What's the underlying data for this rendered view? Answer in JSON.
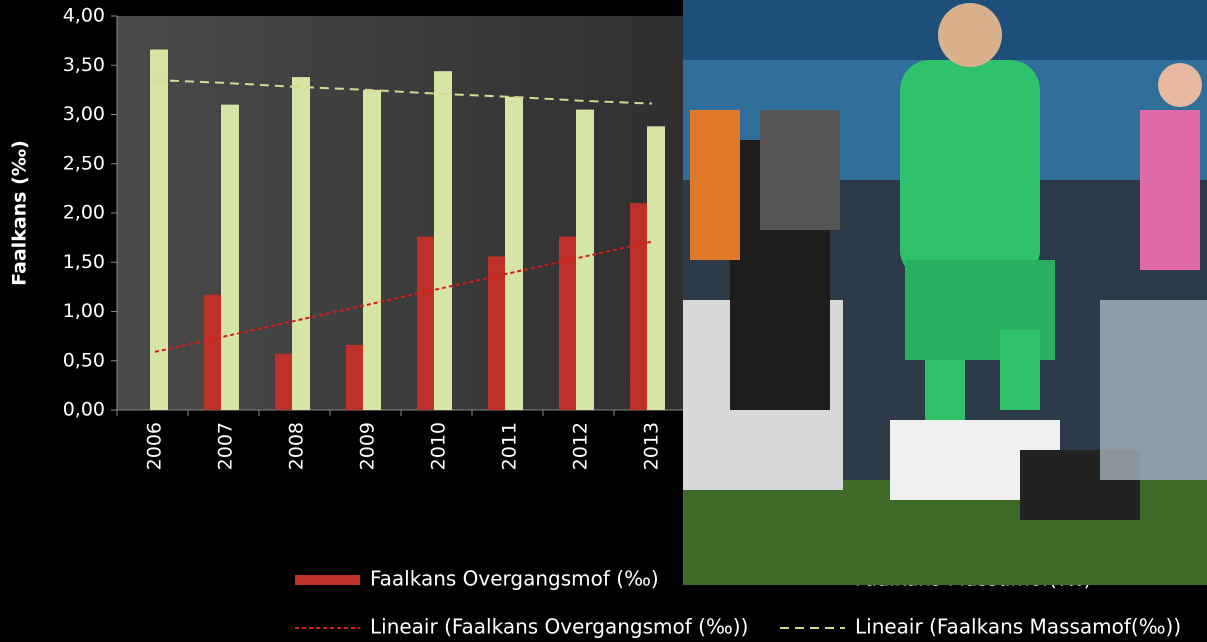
{
  "chart_data": {
    "type": "bar",
    "y_axis_label": "Faalkans (‰)",
    "categories": [
      "2006",
      "2007",
      "2008",
      "2009",
      "2010",
      "2011",
      "2012",
      "2013"
    ],
    "series": [
      {
        "name": "Faalkans Overgangsmof (‰)",
        "color": "#c0302a",
        "values": [
          null,
          1.17,
          0.57,
          0.66,
          1.76,
          1.56,
          1.76,
          2.1
        ]
      },
      {
        "name": "Faalkans Massamof(‰)",
        "color": "#d6e4a6",
        "values": [
          3.66,
          3.1,
          3.38,
          3.25,
          3.44,
          3.18,
          3.05,
          2.88
        ]
      }
    ],
    "trendlines": [
      {
        "name": "Lineair (Faalkans Overgangsmof (‰))",
        "color": "#d41c1c",
        "values": [
          0.59,
          0.75,
          0.91,
          1.07,
          1.23,
          1.39,
          1.55,
          1.71
        ]
      },
      {
        "name": "Lineair (Faalkans Massamof(‰))",
        "color": "#d8d890",
        "values": [
          3.35,
          3.32,
          3.28,
          3.25,
          3.21,
          3.18,
          3.14,
          3.11
        ]
      }
    ],
    "ylim": [
      0,
      4
    ],
    "yticks": [
      {
        "value": 0,
        "label": "0,00"
      },
      {
        "value": 0.5,
        "label": "0,50"
      },
      {
        "value": 1,
        "label": "1,00"
      },
      {
        "value": 1.5,
        "label": "1,50"
      },
      {
        "value": 2,
        "label": "2,00"
      },
      {
        "value": 2.5,
        "label": "2,50"
      },
      {
        "value": 3,
        "label": "3,00"
      },
      {
        "value": 3.5,
        "label": "3,50"
      },
      {
        "value": 4,
        "label": "4,00"
      }
    ]
  }
}
